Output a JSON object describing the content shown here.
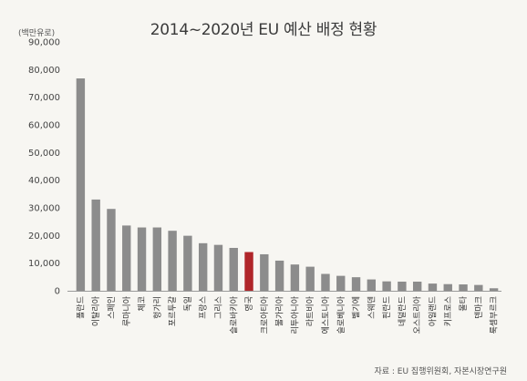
{
  "chart_data": {
    "type": "bar",
    "title": "2014~2020년 EU 예산 배정 현황",
    "unit_label": "(백만유로)",
    "source": "자료 : EU 집행위원회, 자본시장연구원",
    "xlabel": "",
    "ylabel": "",
    "ylim": [
      0,
      90000
    ],
    "yticks": [
      0,
      10000,
      20000,
      30000,
      40000,
      50000,
      60000,
      70000,
      80000,
      90000
    ],
    "ytick_labels": [
      "0",
      "10,000",
      "20,000",
      "30,000",
      "40,000",
      "50,000",
      "60,000",
      "70,000",
      "80,000",
      "90,000"
    ],
    "categories": [
      "폴란드",
      "이탈리아",
      "스페인",
      "루마니아",
      "체코",
      "헝가리",
      "포르투갈",
      "독일",
      "프랑스",
      "그리스",
      "슬로바키아",
      "영국",
      "크로아티아",
      "불가리아",
      "리투아니아",
      "라트비아",
      "에스토니아",
      "슬로베니아",
      "벨기에",
      "스웨덴",
      "핀란드",
      "네덜란드",
      "오스트리아",
      "아일랜드",
      "키프로스",
      "몰타",
      "덴마크",
      "룩셈부르크"
    ],
    "values": [
      76800,
      33000,
      29600,
      23600,
      22900,
      22900,
      21700,
      19900,
      17200,
      16600,
      15500,
      14000,
      13200,
      10900,
      9500,
      8700,
      6100,
      5400,
      4900,
      4100,
      3400,
      3300,
      3300,
      2600,
      2400,
      2300,
      2100,
      900
    ],
    "highlight_category": "영국",
    "grid": false,
    "legend": "none",
    "colors": {
      "bar": "#8c8c8c",
      "highlight": "#b0262a",
      "axis": "#9a9a9a"
    }
  }
}
